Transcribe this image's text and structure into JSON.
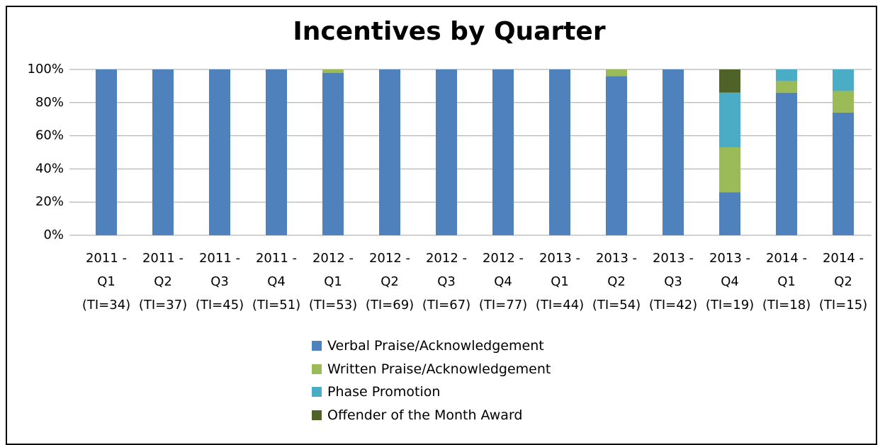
{
  "chart_data": {
    "type": "stacked_bar",
    "title": "Incentives by Quarter",
    "categories": [
      "2011 - Q1 (TI=34)",
      "2011 - Q2 (TI=37)",
      "2011 - Q3 (TI=45)",
      "2011 - Q4 (TI=51)",
      "2012 - Q1 (TI=53)",
      "2012 - Q2 (TI=69)",
      "2012 - Q3 (TI=67)",
      "2012 - Q4 (TI=77)",
      "2013 - Q1 (TI=44)",
      "2013 - Q2 (TI=54)",
      "2013 - Q3 (TI=42)",
      "2013 - Q4 (TI=19)",
      "2014 - Q1 (TI=18)",
      "2014 - Q2 (TI=15)"
    ],
    "series": [
      {
        "name": "Verbal Praise/Acknowledgement",
        "color": "#4f81bd",
        "values": [
          100,
          100,
          100,
          100,
          98,
          100,
          100,
          100,
          100,
          96,
          100,
          26,
          86,
          74
        ]
      },
      {
        "name": "Written Praise/Acknowledgement",
        "color": "#9bbb59",
        "values": [
          0,
          0,
          0,
          0,
          2,
          0,
          0,
          0,
          0,
          4,
          0,
          27,
          7,
          13
        ]
      },
      {
        "name": "Phase Promotion",
        "color": "#4bacc6",
        "values": [
          0,
          0,
          0,
          0,
          0,
          0,
          0,
          0,
          0,
          0,
          0,
          33,
          7,
          13
        ]
      },
      {
        "name": "Offender of the Month Award",
        "color": "#4f6228",
        "values": [
          0,
          0,
          0,
          0,
          0,
          0,
          0,
          0,
          0,
          0,
          0,
          14,
          0,
          0
        ]
      }
    ],
    "ylim": [
      0,
      100
    ],
    "yticks": [
      {
        "value": 0,
        "label": "0%"
      },
      {
        "value": 20,
        "label": "20%"
      },
      {
        "value": 40,
        "label": "40%"
      },
      {
        "value": 60,
        "label": "60%"
      },
      {
        "value": 80,
        "label": "80%"
      },
      {
        "value": 100,
        "label": "100%"
      }
    ],
    "grid": true,
    "legend": "bottom"
  }
}
